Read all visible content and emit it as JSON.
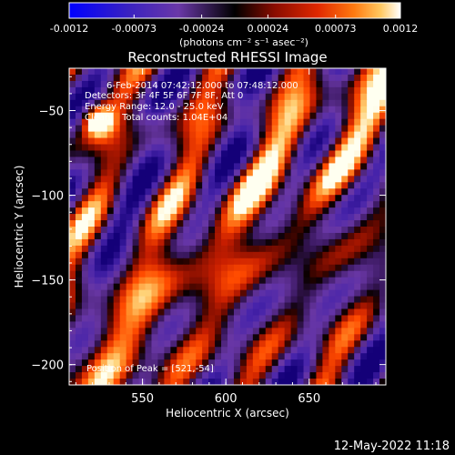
{
  "colorbar": {
    "ticks": [
      "-0.0012",
      "-0.00073",
      "-0.00024",
      "0.00024",
      "0.00073",
      "0.0012"
    ],
    "tick_values": [
      -0.0012,
      -0.00073,
      -0.00024,
      0.00024,
      0.00073,
      0.0012
    ],
    "unit_label": "(photons cm⁻² s⁻¹ asec⁻²)",
    "range": [
      -0.0012,
      0.0012
    ]
  },
  "chart_data": {
    "type": "heatmap",
    "title": "Reconstructed RHESSI Image",
    "xlabel": "Heliocentric X (arcsec)",
    "ylabel": "Heliocentric Y (arcsec)",
    "xlim": [
      506,
      696
    ],
    "ylim": [
      -212,
      -25
    ],
    "xticks": [
      550,
      600,
      650
    ],
    "yticks": [
      -50,
      -100,
      -150,
      -200
    ],
    "annotations": [
      "6-Feb-2014 07:42:12.000 to 07:48:12.000",
      "Detectors: 3F 4F 5F 6F 7F 8F, Att 0",
      "Energy Range: 12.0 - 25.0 keV",
      "Clean    Total counts: 1.04E+04"
    ],
    "peak_label": "Position of Peak = [521,-54]",
    "peak": [
      521,
      -54
    ],
    "colormap": [
      "#0000ff",
      "#4a2aa8",
      "#6a38a8",
      "#000000",
      "#7a1000",
      "#c81e00",
      "#ff4a00",
      "#ffaa30",
      "#ffffff"
    ]
  },
  "footer": {
    "timestamp": "12-May-2022 11:18"
  }
}
